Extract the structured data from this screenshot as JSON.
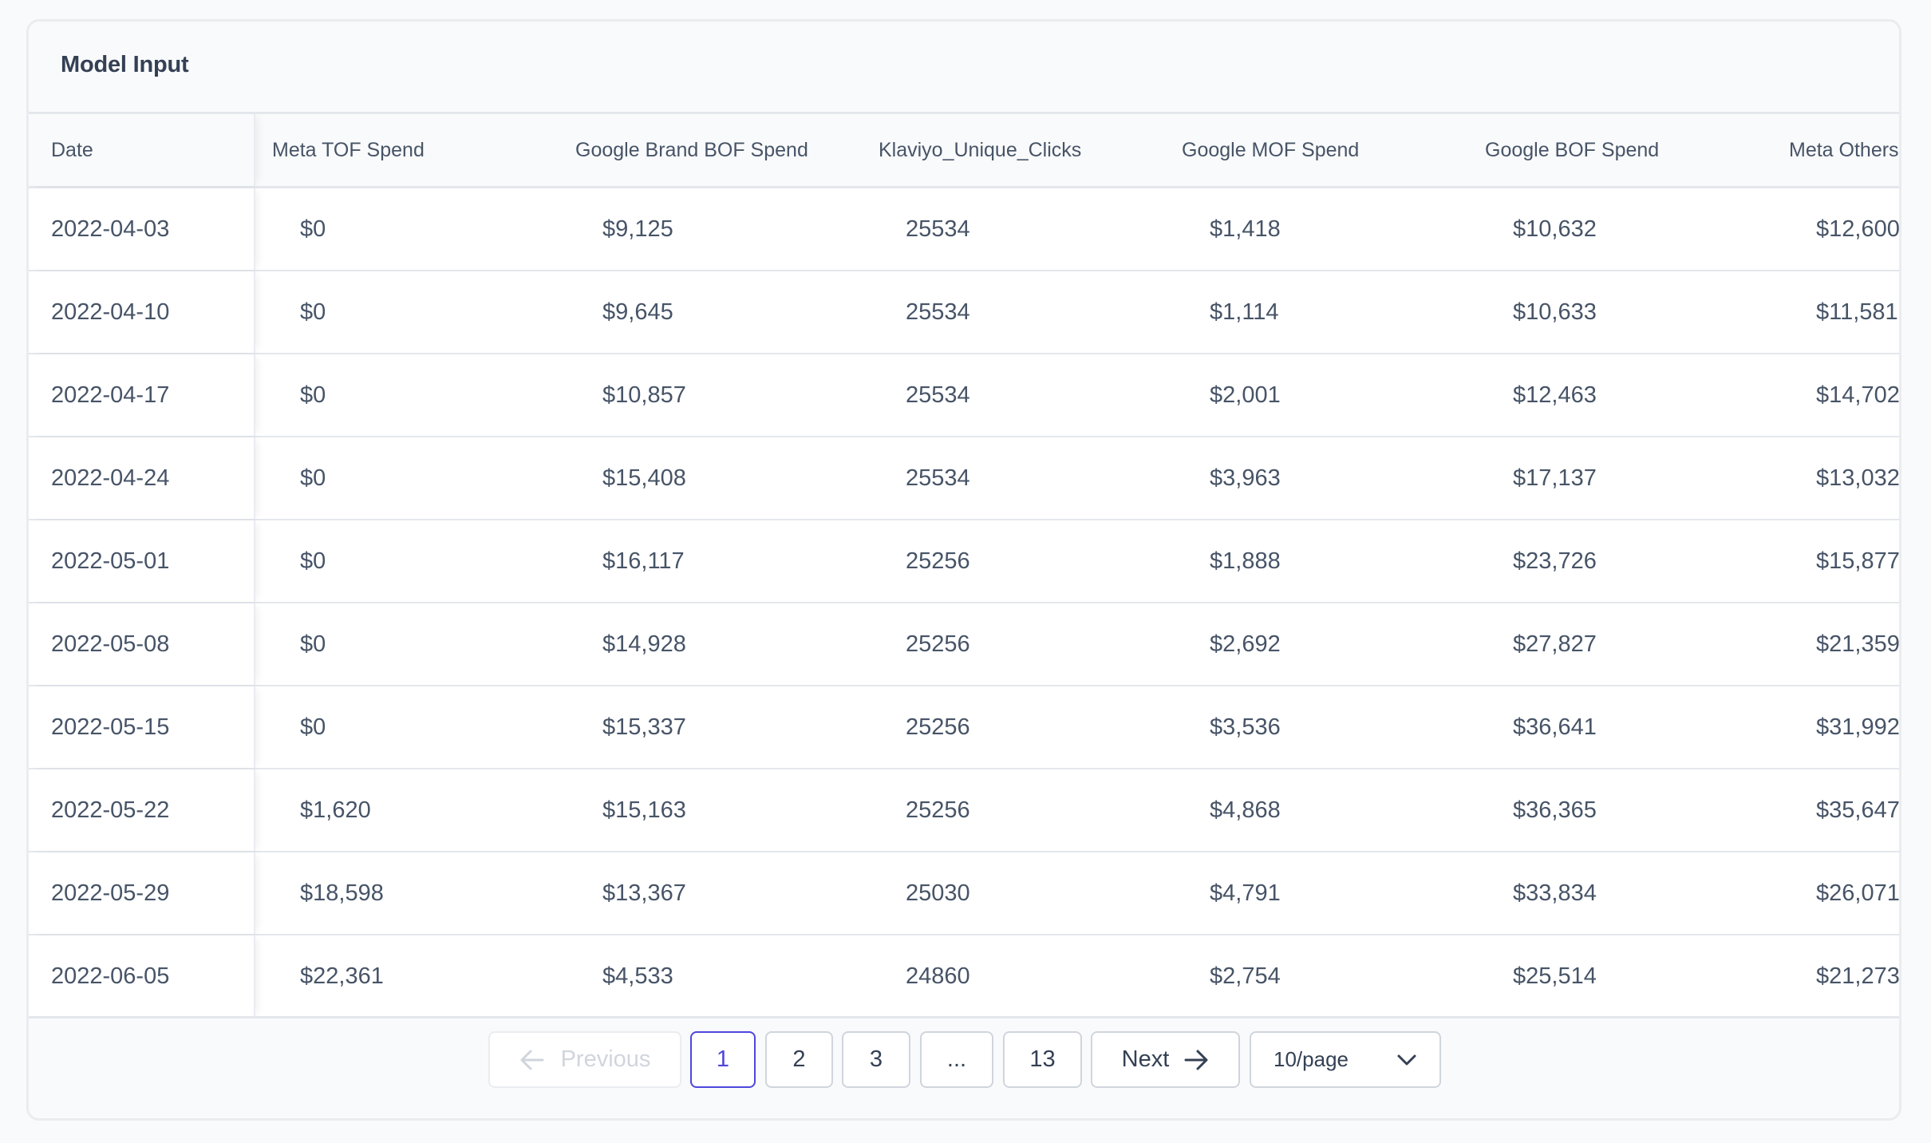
{
  "card": {
    "title": "Model Input"
  },
  "table": {
    "columns": [
      "Date",
      "Meta TOF Spend",
      "Google Brand BOF Spend",
      "Klaviyo_Unique_Clicks",
      "Google MOF Spend",
      "Google BOF Spend",
      "Meta Others"
    ],
    "rows": [
      [
        "2022-04-03",
        "$0",
        "$9,125",
        "25534",
        "$1,418",
        "$10,632",
        "$12,600"
      ],
      [
        "2022-04-10",
        "$0",
        "$9,645",
        "25534",
        "$1,114",
        "$10,633",
        "$11,581"
      ],
      [
        "2022-04-17",
        "$0",
        "$10,857",
        "25534",
        "$2,001",
        "$12,463",
        "$14,702"
      ],
      [
        "2022-04-24",
        "$0",
        "$15,408",
        "25534",
        "$3,963",
        "$17,137",
        "$13,032"
      ],
      [
        "2022-05-01",
        "$0",
        "$16,117",
        "25256",
        "$1,888",
        "$23,726",
        "$15,877"
      ],
      [
        "2022-05-08",
        "$0",
        "$14,928",
        "25256",
        "$2,692",
        "$27,827",
        "$21,359"
      ],
      [
        "2022-05-15",
        "$0",
        "$15,337",
        "25256",
        "$3,536",
        "$36,641",
        "$31,992"
      ],
      [
        "2022-05-22",
        "$1,620",
        "$15,163",
        "25256",
        "$4,868",
        "$36,365",
        "$35,647"
      ],
      [
        "2022-05-29",
        "$18,598",
        "$13,367",
        "25030",
        "$4,791",
        "$33,834",
        "$26,071"
      ],
      [
        "2022-06-05",
        "$22,361",
        "$4,533",
        "24860",
        "$2,754",
        "$25,514",
        "$21,273"
      ]
    ]
  },
  "pagination": {
    "previous_label": "Previous",
    "next_label": "Next",
    "pages": [
      "1",
      "2",
      "3",
      "...",
      "13"
    ],
    "current_page": "1",
    "page_size_label": "10/page"
  },
  "icons": {
    "previous": "arrow-left-icon",
    "next": "arrow-right-icon",
    "page_size": "chevron-down-icon"
  },
  "colors": {
    "accent": "#4e46dc",
    "border": "#d0d5dd",
    "disabled": "#d0d5dd",
    "text": "#344054"
  }
}
